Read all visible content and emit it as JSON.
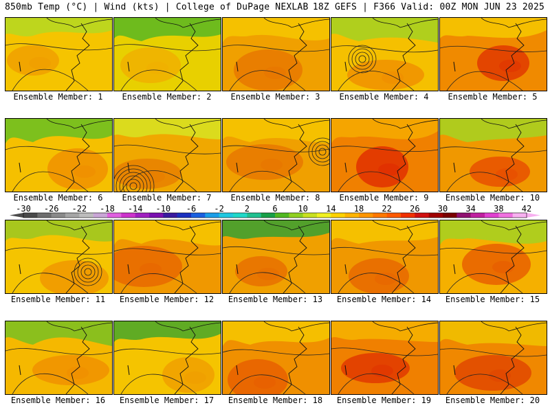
{
  "header": {
    "left": "850mb Temp (°C) | Wind (kts) | College of DuPage NEXLAB",
    "right": "18Z GEFS | F366 Valid: 00Z MON JUN 23 2025"
  },
  "colorbar": {
    "ticks": [
      "-30",
      "-26",
      "-22",
      "-18",
      "-14",
      "-10",
      "-6",
      "-2",
      "2",
      "6",
      "10",
      "14",
      "18",
      "22",
      "26",
      "30",
      "34",
      "38",
      "42"
    ],
    "colors": [
      "#4a4a4a",
      "#6e6e6e",
      "#8a8a8a",
      "#a6a6a6",
      "#bdbdbd",
      "#c9a6d6",
      "#e060e0",
      "#cc33cc",
      "#a020c0",
      "#7a10b0",
      "#3a1aa0",
      "#1a30c0",
      "#1a60e0",
      "#1a9ee8",
      "#20c8e0",
      "#20d8c8",
      "#20c090",
      "#18a048",
      "#50b820",
      "#90d020",
      "#c8e020",
      "#f0f020",
      "#ffd200",
      "#ffb400",
      "#ff9600",
      "#ff7800",
      "#ff5a00",
      "#f03000",
      "#d01010",
      "#a00000",
      "#7a0000",
      "#901070",
      "#c020a0",
      "#e040d0",
      "#f070e0",
      "#f8b0f0"
    ]
  },
  "panels": [
    {
      "label": "Ensemble Member: 1",
      "base": "#f5c400",
      "warm": "#f0a000",
      "cool": "#b8d820"
    },
    {
      "label": "Ensemble Member: 2",
      "base": "#e8d000",
      "warm": "#f0b000",
      "cool": "#60b820"
    },
    {
      "label": "Ensemble Member: 3",
      "base": "#f0a000",
      "warm": "#e87800",
      "cool": "#f5c400"
    },
    {
      "label": "Ensemble Member: 4",
      "base": "#f5c000",
      "warm": "#f09000",
      "cool": "#a8d020"
    },
    {
      "label": "Ensemble Member: 5",
      "base": "#f08a00",
      "warm": "#e03800",
      "cool": "#f5c400"
    },
    {
      "label": "Ensemble Member: 6",
      "base": "#f5c000",
      "warm": "#f09000",
      "cool": "#70c020"
    },
    {
      "label": "Ensemble Member: 7",
      "base": "#f0a800",
      "warm": "#e88000",
      "cool": "#d8e020"
    },
    {
      "label": "Ensemble Member: 8",
      "base": "#f0a000",
      "warm": "#e87800",
      "cool": "#f5c400"
    },
    {
      "label": "Ensemble Member: 9",
      "base": "#f08000",
      "warm": "#e03000",
      "cool": "#f5a800"
    },
    {
      "label": "Ensemble Member: 10",
      "base": "#f09800",
      "warm": "#e85000",
      "cool": "#a8d020"
    },
    {
      "label": "Ensemble Member: 11",
      "base": "#f5c400",
      "warm": "#f09800",
      "cool": "#a0c820"
    },
    {
      "label": "Ensemble Member: 12",
      "base": "#f09800",
      "warm": "#e86800",
      "cool": "#f5c400"
    },
    {
      "label": "Ensemble Member: 13",
      "base": "#f0a000",
      "warm": "#e87000",
      "cool": "#40a030"
    },
    {
      "label": "Ensemble Member: 14",
      "base": "#f09800",
      "warm": "#e86800",
      "cool": "#f5c400"
    },
    {
      "label": "Ensemble Member: 15",
      "base": "#f5b000",
      "warm": "#e86000",
      "cool": "#a8d020"
    },
    {
      "label": "Ensemble Member: 16",
      "base": "#f5b800",
      "warm": "#f09000",
      "cool": "#80c020"
    },
    {
      "label": "Ensemble Member: 17",
      "base": "#f5c400",
      "warm": "#f0a000",
      "cool": "#50a828"
    },
    {
      "label": "Ensemble Member: 18",
      "base": "#f09000",
      "warm": "#e86000",
      "cool": "#f5c400"
    },
    {
      "label": "Ensemble Member: 19",
      "base": "#f08000",
      "warm": "#e03800",
      "cool": "#f5b000"
    },
    {
      "label": "Ensemble Member: 20",
      "base": "#f08800",
      "warm": "#e04800",
      "cool": "#f0c000"
    }
  ]
}
